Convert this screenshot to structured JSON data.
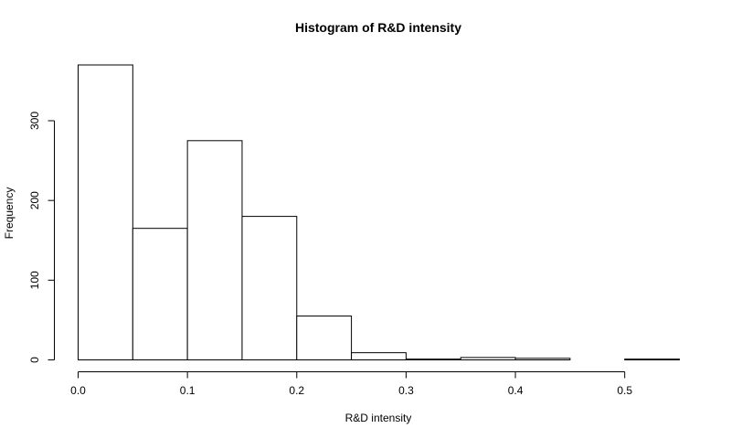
{
  "chart_data": {
    "type": "bar",
    "title": "Histogram of R&D intensity",
    "xlabel": "R&D intensity",
    "ylabel": "Frequency",
    "bins": [
      {
        "start": 0.0,
        "end": 0.05,
        "value": 370
      },
      {
        "start": 0.05,
        "end": 0.1,
        "value": 165
      },
      {
        "start": 0.1,
        "end": 0.15,
        "value": 275
      },
      {
        "start": 0.15,
        "end": 0.2,
        "value": 180
      },
      {
        "start": 0.2,
        "end": 0.25,
        "value": 55
      },
      {
        "start": 0.25,
        "end": 0.3,
        "value": 9
      },
      {
        "start": 0.3,
        "end": 0.35,
        "value": 1
      },
      {
        "start": 0.35,
        "end": 0.4,
        "value": 3
      },
      {
        "start": 0.4,
        "end": 0.45,
        "value": 2
      },
      {
        "start": 0.45,
        "end": 0.5,
        "value": 0
      },
      {
        "start": 0.5,
        "end": 0.55,
        "value": 1
      }
    ],
    "xlim": [
      0,
      0.55
    ],
    "ylim": [
      0,
      370
    ],
    "x_ticks": [
      0.0,
      0.1,
      0.2,
      0.3,
      0.4,
      0.5
    ],
    "x_tick_labels": [
      "0.0",
      "0.1",
      "0.2",
      "0.3",
      "0.4",
      "0.5"
    ],
    "y_ticks": [
      0,
      100,
      200,
      300
    ],
    "y_tick_labels": [
      "0",
      "100",
      "200",
      "300"
    ],
    "grid": false,
    "legend": "none",
    "colors": {
      "bar_fill": "#ffffff",
      "bar_stroke": "#000000",
      "axis": "#000000",
      "text": "#000000"
    }
  }
}
